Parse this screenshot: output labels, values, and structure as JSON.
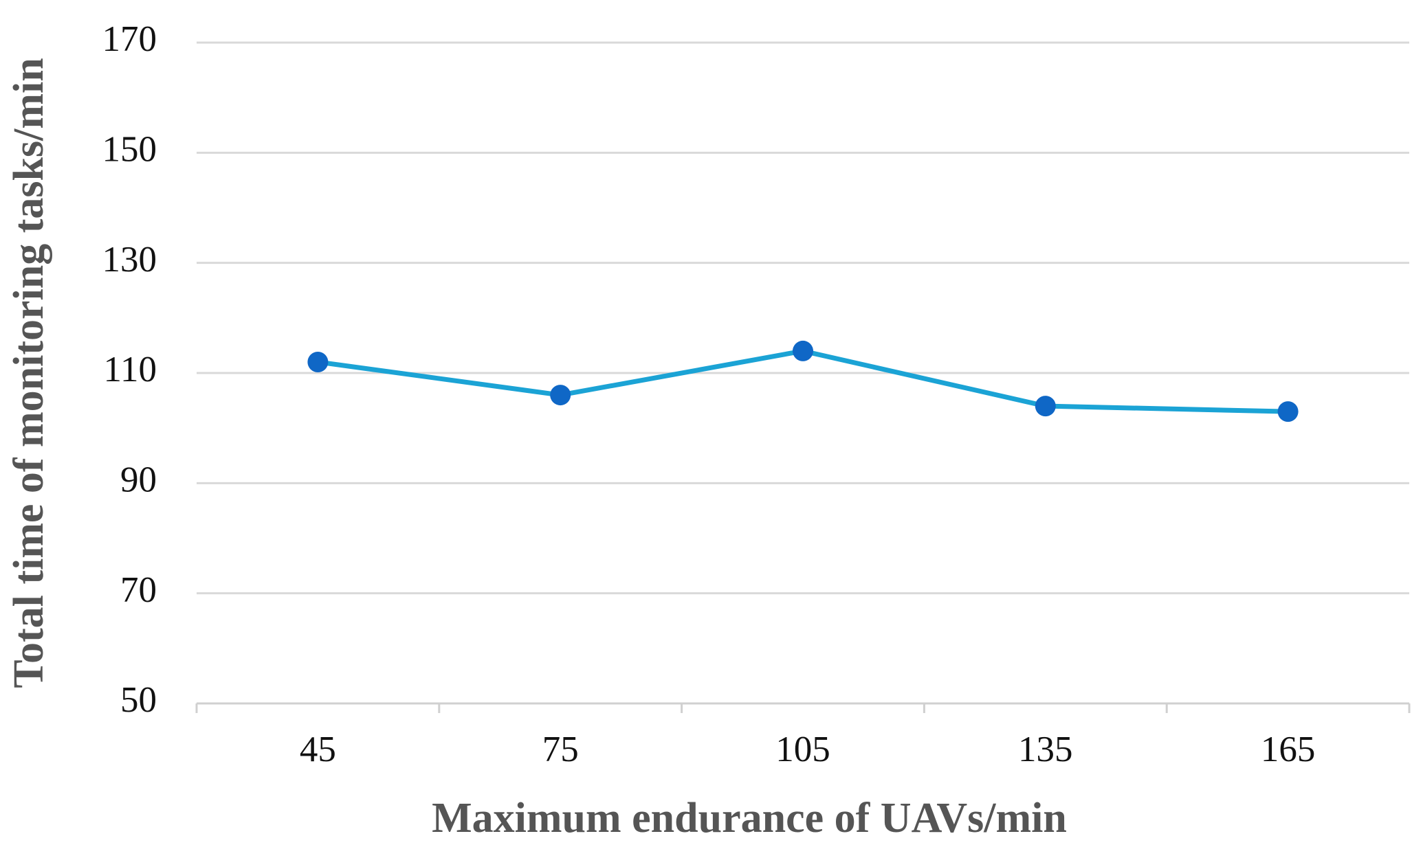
{
  "chart_data": {
    "type": "line",
    "x_label": "Maximum endurance of UAVs/min",
    "y_label": "Total time of monitoring tasks/min",
    "categories": [
      "45",
      "75",
      "105",
      "135",
      "165"
    ],
    "values": [
      112,
      106,
      114,
      104,
      103
    ],
    "color": "#1ba3d5",
    "marker_color": "#0f67c6",
    "ylim": [
      50,
      170
    ],
    "yticks": [
      50,
      70,
      90,
      110,
      130,
      150,
      170
    ],
    "grid": true
  }
}
